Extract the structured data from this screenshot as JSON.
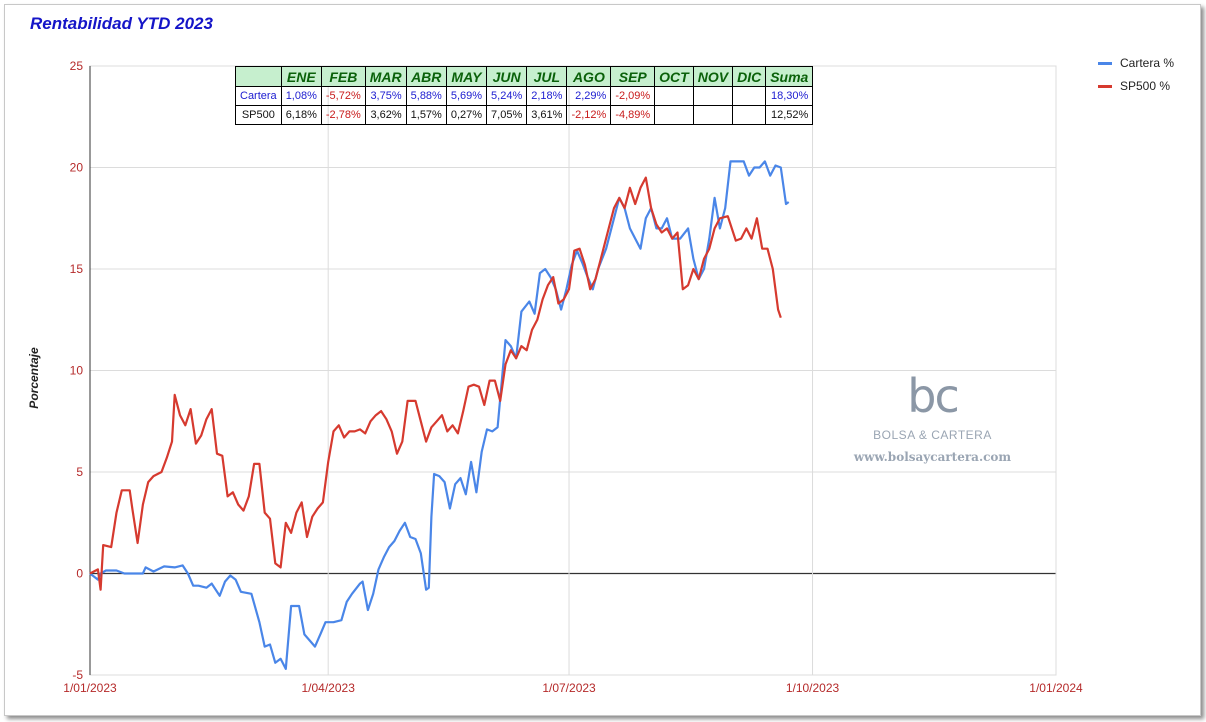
{
  "title": "Rentabilidad YTD 2023",
  "legend": [
    {
      "label": "Cartera %",
      "color": "#4a86e8"
    },
    {
      "label": "SP500 %",
      "color": "#d63a2f"
    }
  ],
  "table": {
    "headers": [
      "ENE",
      "FEB",
      "MAR",
      "ABR",
      "MAY",
      "JUN",
      "JUL",
      "AGO",
      "SEP",
      "OCT",
      "NOV",
      "DIC",
      "Suma"
    ],
    "rows": [
      {
        "label": "Cartera",
        "values": [
          "1,08%",
          "-5,72%",
          "3,75%",
          "5,88%",
          "5,69%",
          "5,24%",
          "2,18%",
          "2,29%",
          "-2,09%",
          "",
          "",
          "",
          "18,30%"
        ]
      },
      {
        "label": "SP500",
        "values": [
          "6,18%",
          "-2,78%",
          "3,62%",
          "1,57%",
          "0,27%",
          "7,05%",
          "3,61%",
          "-2,12%",
          "-4,89%",
          "",
          "",
          "",
          "12,52%"
        ]
      }
    ]
  },
  "watermark": {
    "logo": "bc",
    "name": "BOLSA & CARTERA",
    "url": "www.bolsaycartera.com"
  },
  "chart_data": {
    "type": "line",
    "title": "Rentabilidad YTD 2023",
    "xlabel": "",
    "ylabel": "Porcentaje",
    "ylim": [
      -5,
      25
    ],
    "y_ticks": [
      -5,
      0,
      5,
      10,
      15,
      20,
      25
    ],
    "x_tick_labels": [
      "1/01/2023",
      "1/04/2023",
      "1/07/2023",
      "1/10/2023",
      "1/01/2024"
    ],
    "x_ticks_day": [
      0,
      90,
      181,
      273,
      365
    ],
    "grid": true,
    "legend_position": "right",
    "series": [
      {
        "name": "Cartera %",
        "color": "#4a86e8",
        "points": [
          [
            0,
            0
          ],
          [
            3,
            -0.3
          ],
          [
            4,
            0
          ],
          [
            6,
            0.15
          ],
          [
            10,
            0.15
          ],
          [
            13,
            0
          ],
          [
            17,
            0
          ],
          [
            20,
            0
          ],
          [
            21,
            0.3
          ],
          [
            24,
            0.1
          ],
          [
            28,
            0.35
          ],
          [
            32,
            0.3
          ],
          [
            35,
            0.4
          ],
          [
            37,
            0
          ],
          [
            39,
            -0.6
          ],
          [
            41,
            -0.6
          ],
          [
            44,
            -0.7
          ],
          [
            46,
            -0.5
          ],
          [
            49,
            -1.1
          ],
          [
            51,
            -0.4
          ],
          [
            53,
            -0.1
          ],
          [
            55,
            -0.3
          ],
          [
            57,
            -0.9
          ],
          [
            61,
            -1.0
          ],
          [
            64,
            -2.4
          ],
          [
            66,
            -3.6
          ],
          [
            68,
            -3.5
          ],
          [
            70,
            -4.4
          ],
          [
            72,
            -4.2
          ],
          [
            74,
            -4.7
          ],
          [
            76,
            -1.6
          ],
          [
            79,
            -1.6
          ],
          [
            81,
            -3.0
          ],
          [
            83,
            -3.3
          ],
          [
            85,
            -3.6
          ],
          [
            87,
            -3.0
          ],
          [
            89,
            -2.4
          ],
          [
            92,
            -2.4
          ],
          [
            95,
            -2.3
          ],
          [
            97,
            -1.4
          ],
          [
            99,
            -1.0
          ],
          [
            102,
            -0.5
          ],
          [
            103,
            -0.4
          ],
          [
            105,
            -1.8
          ],
          [
            107,
            -1.0
          ],
          [
            109,
            0.2
          ],
          [
            111,
            0.8
          ],
          [
            113,
            1.3
          ],
          [
            115,
            1.6
          ],
          [
            117,
            2.1
          ],
          [
            119,
            2.5
          ],
          [
            121,
            1.8
          ],
          [
            123,
            1.7
          ],
          [
            125,
            1.0
          ],
          [
            127,
            -0.8
          ],
          [
            128,
            -0.7
          ],
          [
            129,
            2.8
          ],
          [
            130,
            4.9
          ],
          [
            132,
            4.8
          ],
          [
            134,
            4.5
          ],
          [
            136,
            3.2
          ],
          [
            138,
            4.4
          ],
          [
            140,
            4.7
          ],
          [
            142,
            3.9
          ],
          [
            144,
            5.5
          ],
          [
            146,
            4.0
          ],
          [
            148,
            6.0
          ],
          [
            150,
            7.1
          ],
          [
            152,
            7.0
          ],
          [
            154,
            7.2
          ],
          [
            157,
            11.5
          ],
          [
            159,
            11.2
          ],
          [
            161,
            10.6
          ],
          [
            163,
            12.9
          ],
          [
            166,
            13.4
          ],
          [
            168,
            12.8
          ],
          [
            170,
            14.8
          ],
          [
            172,
            15.0
          ],
          [
            174,
            14.6
          ],
          [
            176,
            14.0
          ],
          [
            178,
            13.0
          ],
          [
            180,
            14.0
          ],
          [
            182,
            15.2
          ],
          [
            184,
            15.9
          ],
          [
            186,
            15.3
          ],
          [
            188,
            14.6
          ],
          [
            190,
            14.0
          ],
          [
            192,
            15.0
          ],
          [
            195,
            16.0
          ],
          [
            198,
            17.5
          ],
          [
            200,
            18.5
          ],
          [
            202,
            18.0
          ],
          [
            204,
            17.0
          ],
          [
            206,
            16.5
          ],
          [
            208,
            16.0
          ],
          [
            210,
            17.5
          ],
          [
            212,
            18.0
          ],
          [
            214,
            17.0
          ],
          [
            216,
            17.0
          ],
          [
            218,
            17.5
          ],
          [
            220,
            16.5
          ],
          [
            223,
            16.5
          ],
          [
            226,
            17.0
          ],
          [
            228,
            15.5
          ],
          [
            230,
            14.5
          ],
          [
            232,
            15.0
          ],
          [
            234,
            16.5
          ],
          [
            236,
            18.5
          ],
          [
            238,
            17.0
          ],
          [
            240,
            18.0
          ],
          [
            242,
            20.3
          ],
          [
            244,
            20.3
          ],
          [
            247,
            20.3
          ],
          [
            249,
            19.6
          ],
          [
            251,
            20.0
          ],
          [
            253,
            20.0
          ],
          [
            255,
            20.3
          ],
          [
            257,
            19.6
          ],
          [
            259,
            20.1
          ],
          [
            261,
            20.0
          ],
          [
            263,
            18.2
          ],
          [
            264,
            18.3
          ]
        ]
      },
      {
        "name": "SP500 %",
        "color": "#d63a2f",
        "points": [
          [
            0,
            0
          ],
          [
            3,
            0.2
          ],
          [
            4,
            -0.8
          ],
          [
            5,
            1.4
          ],
          [
            8,
            1.3
          ],
          [
            10,
            3.0
          ],
          [
            12,
            4.1
          ],
          [
            15,
            4.1
          ],
          [
            16,
            3.2
          ],
          [
            18,
            1.5
          ],
          [
            20,
            3.4
          ],
          [
            22,
            4.5
          ],
          [
            24,
            4.8
          ],
          [
            27,
            5.0
          ],
          [
            29,
            5.7
          ],
          [
            31,
            6.5
          ],
          [
            32,
            8.8
          ],
          [
            34,
            7.8
          ],
          [
            36,
            7.3
          ],
          [
            38,
            8.1
          ],
          [
            40,
            6.4
          ],
          [
            42,
            6.8
          ],
          [
            44,
            7.6
          ],
          [
            46,
            8.1
          ],
          [
            48,
            5.9
          ],
          [
            50,
            5.8
          ],
          [
            52,
            3.8
          ],
          [
            54,
            4.0
          ],
          [
            56,
            3.4
          ],
          [
            58,
            3.1
          ],
          [
            60,
            3.8
          ],
          [
            62,
            5.4
          ],
          [
            64,
            5.4
          ],
          [
            66,
            3.0
          ],
          [
            68,
            2.7
          ],
          [
            70,
            0.5
          ],
          [
            72,
            0.3
          ],
          [
            74,
            2.5
          ],
          [
            76,
            2.0
          ],
          [
            78,
            3.0
          ],
          [
            80,
            3.5
          ],
          [
            82,
            1.8
          ],
          [
            84,
            2.8
          ],
          [
            86,
            3.2
          ],
          [
            88,
            3.5
          ],
          [
            90,
            5.5
          ],
          [
            92,
            7.0
          ],
          [
            94,
            7.3
          ],
          [
            96,
            6.7
          ],
          [
            98,
            7.0
          ],
          [
            100,
            7.0
          ],
          [
            102,
            7.1
          ],
          [
            104,
            6.9
          ],
          [
            106,
            7.5
          ],
          [
            108,
            7.8
          ],
          [
            110,
            8.0
          ],
          [
            112,
            7.6
          ],
          [
            114,
            7.0
          ],
          [
            116,
            5.9
          ],
          [
            118,
            6.5
          ],
          [
            120,
            8.5
          ],
          [
            123,
            8.5
          ],
          [
            125,
            7.5
          ],
          [
            127,
            6.5
          ],
          [
            129,
            7.2
          ],
          [
            131,
            7.5
          ],
          [
            133,
            7.8
          ],
          [
            135,
            7.0
          ],
          [
            137,
            7.3
          ],
          [
            139,
            6.9
          ],
          [
            141,
            8.0
          ],
          [
            143,
            9.2
          ],
          [
            145,
            9.3
          ],
          [
            147,
            9.2
          ],
          [
            149,
            8.3
          ],
          [
            151,
            9.5
          ],
          [
            153,
            9.5
          ],
          [
            155,
            8.5
          ],
          [
            157,
            10.3
          ],
          [
            159,
            11.0
          ],
          [
            161,
            10.6
          ],
          [
            163,
            11.2
          ],
          [
            165,
            11.0
          ],
          [
            167,
            12.0
          ],
          [
            169,
            12.5
          ],
          [
            171,
            13.5
          ],
          [
            173,
            14.2
          ],
          [
            175,
            14.6
          ],
          [
            177,
            13.3
          ],
          [
            179,
            13.5
          ],
          [
            181,
            14.0
          ],
          [
            183,
            15.9
          ],
          [
            185,
            16.0
          ],
          [
            187,
            15.2
          ],
          [
            189,
            14.0
          ],
          [
            191,
            14.5
          ],
          [
            193,
            15.5
          ],
          [
            196,
            17.0
          ],
          [
            198,
            18.0
          ],
          [
            200,
            18.5
          ],
          [
            202,
            18.0
          ],
          [
            204,
            19.0
          ],
          [
            206,
            18.2
          ],
          [
            208,
            19.0
          ],
          [
            210,
            19.5
          ],
          [
            212,
            18.0
          ],
          [
            214,
            17.2
          ],
          [
            216,
            16.8
          ],
          [
            218,
            17.0
          ],
          [
            220,
            16.5
          ],
          [
            222,
            16.8
          ],
          [
            224,
            14.0
          ],
          [
            226,
            14.2
          ],
          [
            228,
            15.0
          ],
          [
            230,
            14.5
          ],
          [
            232,
            15.5
          ],
          [
            234,
            16.0
          ],
          [
            236,
            17.0
          ],
          [
            238,
            17.5
          ],
          [
            241,
            17.6
          ],
          [
            244,
            16.4
          ],
          [
            246,
            16.5
          ],
          [
            248,
            17.0
          ],
          [
            250,
            16.5
          ],
          [
            252,
            17.5
          ],
          [
            254,
            16.0
          ],
          [
            256,
            16.0
          ],
          [
            258,
            15.0
          ],
          [
            260,
            13.0
          ],
          [
            261,
            12.6
          ]
        ]
      }
    ]
  }
}
